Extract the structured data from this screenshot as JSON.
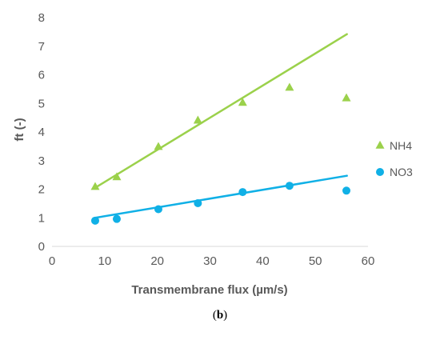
{
  "chart_data": {
    "type": "scatter",
    "xlabel": "Transmembrane flux (µm/s)",
    "ylabel": "ft (-)",
    "xlim": [
      0,
      60
    ],
    "ylim": [
      0,
      8
    ],
    "xticks": [
      "0",
      "10",
      "20",
      "30",
      "40",
      "50",
      "60"
    ],
    "yticks": [
      "0",
      "1",
      "2",
      "3",
      "4",
      "5",
      "6",
      "7",
      "8"
    ],
    "grid": false,
    "legend_position": "right",
    "series": [
      {
        "name": "NH4",
        "marker": "triangle",
        "color": "#9bd14b",
        "x": [
          8.2,
          12.3,
          20.2,
          27.7,
          36.2,
          45.1,
          55.9
        ],
        "y": [
          2.08,
          2.42,
          3.48,
          4.4,
          5.02,
          5.55,
          5.18
        ],
        "trendline": [
          [
            8.2,
            2.05
          ],
          [
            56.0,
            7.42
          ]
        ]
      },
      {
        "name": "NO3",
        "marker": "circle",
        "color": "#10b0e6",
        "x": [
          8.2,
          12.3,
          20.2,
          27.7,
          36.2,
          45.1,
          55.9
        ],
        "y": [
          0.9,
          0.96,
          1.3,
          1.51,
          1.9,
          2.12,
          1.95
        ],
        "trendline": [
          [
            8.2,
            1.0
          ],
          [
            56.0,
            2.47
          ]
        ]
      }
    ]
  },
  "panel_label": {
    "open": "(",
    "letter": "b",
    "close": ")"
  }
}
